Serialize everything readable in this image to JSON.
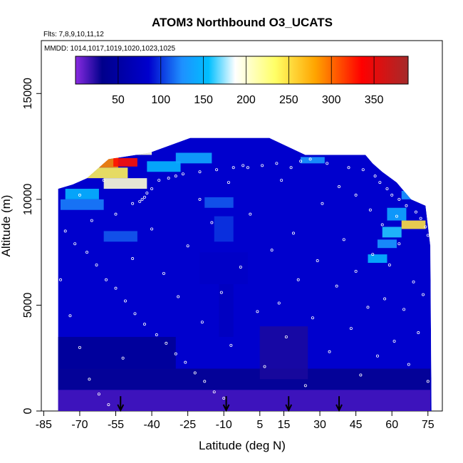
{
  "chart_data": {
    "type": "heatmap",
    "title": "ATOM3 Northbound O3_UCATS",
    "notes": [
      "Flts: 7,8,9,10,11,12",
      "MMDD: 1014,1017,1019,1020,1023,1025"
    ],
    "xlabel": "Latitude (deg N)",
    "ylabel": "Altitude (m)",
    "xlim": [
      -86,
      81
    ],
    "ylim": [
      0,
      17500
    ],
    "x_ticks": [
      -85,
      -70,
      -55,
      -40,
      -25,
      -10,
      5,
      15,
      30,
      45,
      60,
      75
    ],
    "y_ticks": [
      0,
      5000,
      10000,
      15000
    ],
    "colorbar": {
      "min": 0,
      "max": 390,
      "ticks": [
        50,
        100,
        150,
        200,
        250,
        300,
        350
      ],
      "colors": [
        "#8a2be2",
        "#00008b",
        "#0000cd",
        "#1e90ff",
        "#00bfff",
        "#ffffff",
        "#ffff66",
        "#ffa500",
        "#ff0000",
        "#a52a2a"
      ]
    },
    "ceiling_profile": [
      {
        "lat": -79,
        "alt": 10500
      },
      {
        "lat": -73,
        "alt": 10700
      },
      {
        "lat": -67,
        "alt": 11000
      },
      {
        "lat": -58,
        "alt": 11900
      },
      {
        "lat": -41,
        "alt": 12200
      },
      {
        "lat": -24,
        "alt": 12900
      },
      {
        "lat": 9,
        "alt": 12900
      },
      {
        "lat": 24,
        "alt": 12100
      },
      {
        "lat": 49,
        "alt": 12100
      },
      {
        "lat": 52,
        "alt": 11700
      },
      {
        "lat": 56,
        "alt": 11300
      },
      {
        "lat": 62,
        "alt": 10800
      },
      {
        "lat": 68,
        "alt": 10000
      },
      {
        "lat": 74,
        "alt": 9700
      },
      {
        "lat": 76,
        "alt": 7800
      },
      {
        "lat": 76.5,
        "alt": 0
      }
    ],
    "ozone_features": [
      {
        "lat_min": -72,
        "lat_max": -54,
        "alt_min": 11500,
        "alt_max": 12000,
        "o3": 290
      },
      {
        "lat_min": -56,
        "lat_max": -46,
        "alt_min": 11550,
        "alt_max": 11950,
        "o3": 330
      },
      {
        "lat_min": -76,
        "lat_max": -62,
        "alt_min": 10000,
        "alt_max": 10500,
        "o3": 150
      },
      {
        "lat_min": -70,
        "lat_max": -50,
        "alt_min": 11000,
        "alt_max": 11500,
        "o3": 240
      },
      {
        "lat_min": -60,
        "lat_max": -42,
        "alt_min": 10500,
        "alt_max": 11000,
        "o3": 200
      },
      {
        "lat_min": -42,
        "lat_max": -28,
        "alt_min": 11300,
        "alt_max": 11800,
        "o3": 150
      },
      {
        "lat_min": -30,
        "lat_max": -15,
        "alt_min": 11700,
        "alt_max": 12200,
        "o3": 140
      },
      {
        "lat_min": -48,
        "lat_max": -40,
        "alt_min": 12100,
        "alt_max": 12400,
        "o3": 200
      },
      {
        "lat_min": 22,
        "lat_max": 32,
        "alt_min": 11700,
        "alt_max": 12000,
        "o3": 130
      },
      {
        "lat_min": -78,
        "lat_max": -60,
        "alt_min": 9500,
        "alt_max": 10000,
        "o3": 120
      },
      {
        "lat_min": -60,
        "lat_max": -46,
        "alt_min": 8000,
        "alt_max": 8500,
        "o3": 110
      },
      {
        "lat_min": -18,
        "lat_max": -6,
        "alt_min": 9600,
        "alt_max": 10100,
        "o3": 110
      },
      {
        "lat_min": -14,
        "lat_max": -6,
        "alt_min": 8000,
        "alt_max": 9200,
        "o3": 100
      },
      {
        "lat_min": 64,
        "lat_max": 74,
        "alt_min": 8600,
        "alt_max": 9000,
        "o3": 250
      },
      {
        "lat_min": 56,
        "lat_max": 64,
        "alt_min": 8200,
        "alt_max": 8700,
        "o3": 160
      },
      {
        "lat_min": 58,
        "lat_max": 66,
        "alt_min": 9000,
        "alt_max": 9600,
        "o3": 140
      },
      {
        "lat_min": 50,
        "lat_max": 58,
        "alt_min": 7000,
        "alt_max": 7400,
        "o3": 150
      },
      {
        "lat_min": 54,
        "lat_max": 62,
        "alt_min": 7700,
        "alt_max": 8100,
        "o3": 130
      },
      {
        "lat_min": 64,
        "lat_max": 72,
        "alt_min": 10000,
        "alt_max": 10400,
        "o3": 130
      },
      {
        "lat_min": -20,
        "lat_max": 0,
        "alt_min": 6000,
        "alt_max": 7500,
        "o3": 80
      },
      {
        "lat_min": -12,
        "lat_max": -6,
        "alt_min": 3500,
        "alt_max": 6000,
        "o3": 75
      }
    ],
    "surface_features": [
      {
        "lat_min": -80,
        "lat_max": 76,
        "alt_min": 0,
        "alt_max": 1000,
        "o3": 15
      },
      {
        "lat_min": -80,
        "lat_max": 76,
        "alt_min": 1000,
        "alt_max": 2000,
        "o3": 30
      },
      {
        "lat_min": -80,
        "lat_max": -30,
        "alt_min": 2000,
        "alt_max": 3500,
        "o3": 38
      },
      {
        "lat_min": 5,
        "lat_max": 25,
        "alt_min": 1500,
        "alt_max": 4000,
        "o3": 25
      }
    ],
    "arrows": [
      {
        "lat": -53,
        "alt_top": 700
      },
      {
        "lat": -9,
        "alt_top": 700
      },
      {
        "lat": 17,
        "alt_top": 700
      },
      {
        "lat": 38,
        "alt_top": 700
      }
    ],
    "sample_points": [
      {
        "lat": -48,
        "alt": 9800
      },
      {
        "lat": -45,
        "alt": 9900
      },
      {
        "lat": -44,
        "alt": 10000
      },
      {
        "lat": -43,
        "alt": 10100
      },
      {
        "lat": -42,
        "alt": 10300
      },
      {
        "lat": -40,
        "alt": 10500
      },
      {
        "lat": -37,
        "alt": 10900
      },
      {
        "lat": -33,
        "alt": 11000
      },
      {
        "lat": -30,
        "alt": 11100
      },
      {
        "lat": -27,
        "alt": 11200
      },
      {
        "lat": -20,
        "alt": 11300
      },
      {
        "lat": -13,
        "alt": 11400
      },
      {
        "lat": -6,
        "alt": 11500
      },
      {
        "lat": -2,
        "alt": 11600
      },
      {
        "lat": 0,
        "alt": 11500
      },
      {
        "lat": 6,
        "alt": 11600
      },
      {
        "lat": 12,
        "alt": 11700
      },
      {
        "lat": 18,
        "alt": 11500
      },
      {
        "lat": 22,
        "alt": 11800
      },
      {
        "lat": 26,
        "alt": 11900
      },
      {
        "lat": 33,
        "alt": 11700
      },
      {
        "lat": 42,
        "alt": 11500
      },
      {
        "lat": 48,
        "alt": 11400
      },
      {
        "lat": 53,
        "alt": 11100
      },
      {
        "lat": 55,
        "alt": 10800
      },
      {
        "lat": 58,
        "alt": 10500
      },
      {
        "lat": 60,
        "alt": 10200
      },
      {
        "lat": 63,
        "alt": 10000
      },
      {
        "lat": 66,
        "alt": 9700
      },
      {
        "lat": 70,
        "alt": 9400
      },
      {
        "lat": 72,
        "alt": 9100
      },
      {
        "lat": 74,
        "alt": 8700
      },
      {
        "lat": 75,
        "alt": 8300
      },
      {
        "lat": -76,
        "alt": 8500
      },
      {
        "lat": -72,
        "alt": 7900
      },
      {
        "lat": -67,
        "alt": 7500
      },
      {
        "lat": -63,
        "alt": 6900
      },
      {
        "lat": -59,
        "alt": 6200
      },
      {
        "lat": -55,
        "alt": 5800
      },
      {
        "lat": -51,
        "alt": 5200
      },
      {
        "lat": -47,
        "alt": 4600
      },
      {
        "lat": -43,
        "alt": 4100
      },
      {
        "lat": -38,
        "alt": 3600
      },
      {
        "lat": -34,
        "alt": 3200
      },
      {
        "lat": -30,
        "alt": 2700
      },
      {
        "lat": -26,
        "alt": 2300
      },
      {
        "lat": -22,
        "alt": 1800
      },
      {
        "lat": -18,
        "alt": 1400
      },
      {
        "lat": -14,
        "alt": 900
      },
      {
        "lat": -10,
        "alt": 600
      },
      {
        "lat": -78,
        "alt": 6200
      },
      {
        "lat": -74,
        "alt": 4500
      },
      {
        "lat": -70,
        "alt": 3000
      },
      {
        "lat": -66,
        "alt": 1500
      },
      {
        "lat": -62,
        "alt": 800
      },
      {
        "lat": -58,
        "alt": 300
      },
      {
        "lat": -52,
        "alt": 2500
      },
      {
        "lat": -48,
        "alt": 7200
      },
      {
        "lat": -40,
        "alt": 8600
      },
      {
        "lat": -35,
        "alt": 6500
      },
      {
        "lat": -29,
        "alt": 5400
      },
      {
        "lat": -25,
        "alt": 7800
      },
      {
        "lat": -19,
        "alt": 4200
      },
      {
        "lat": -15,
        "alt": 8900
      },
      {
        "lat": -11,
        "alt": 5600
      },
      {
        "lat": -7,
        "alt": 3100
      },
      {
        "lat": -3,
        "alt": 6800
      },
      {
        "lat": 1,
        "alt": 9300
      },
      {
        "lat": 4,
        "alt": 4700
      },
      {
        "lat": 7,
        "alt": 2100
      },
      {
        "lat": 10,
        "alt": 7600
      },
      {
        "lat": 13,
        "alt": 5100
      },
      {
        "lat": 16,
        "alt": 3500
      },
      {
        "lat": 19,
        "alt": 8400
      },
      {
        "lat": 21,
        "alt": 6200
      },
      {
        "lat": 24,
        "alt": 1200
      },
      {
        "lat": 27,
        "alt": 4400
      },
      {
        "lat": 29,
        "alt": 7100
      },
      {
        "lat": 31,
        "alt": 9800
      },
      {
        "lat": 34,
        "alt": 2800
      },
      {
        "lat": 37,
        "alt": 5900
      },
      {
        "lat": 40,
        "alt": 8100
      },
      {
        "lat": 43,
        "alt": 3900
      },
      {
        "lat": 45,
        "alt": 6600
      },
      {
        "lat": 47,
        "alt": 1700
      },
      {
        "lat": 50,
        "alt": 4900
      },
      {
        "lat": 52,
        "alt": 7400
      },
      {
        "lat": 54,
        "alt": 2600
      },
      {
        "lat": 57,
        "alt": 5300
      },
      {
        "lat": 59,
        "alt": 6900
      },
      {
        "lat": 61,
        "alt": 3300
      },
      {
        "lat": 63,
        "alt": 7900
      },
      {
        "lat": 65,
        "alt": 4800
      },
      {
        "lat": 67,
        "alt": 2200
      },
      {
        "lat": 69,
        "alt": 6100
      },
      {
        "lat": 71,
        "alt": 3700
      },
      {
        "lat": 73,
        "alt": 5500
      },
      {
        "lat": 75,
        "alt": 1400
      },
      {
        "lat": 62,
        "alt": 9200
      },
      {
        "lat": 56,
        "alt": 8800
      },
      {
        "lat": 51,
        "alt": 9500
      },
      {
        "lat": 45,
        "alt": 10200
      },
      {
        "lat": 38,
        "alt": 10600
      },
      {
        "lat": 14,
        "alt": 10900
      },
      {
        "lat": -8,
        "alt": 10800
      },
      {
        "lat": -20,
        "alt": 10000
      },
      {
        "lat": -55,
        "alt": 9300
      },
      {
        "lat": -65,
        "alt": 9000
      },
      {
        "lat": -70,
        "alt": 10200
      },
      {
        "lat": -60,
        "alt": 10900
      }
    ]
  }
}
